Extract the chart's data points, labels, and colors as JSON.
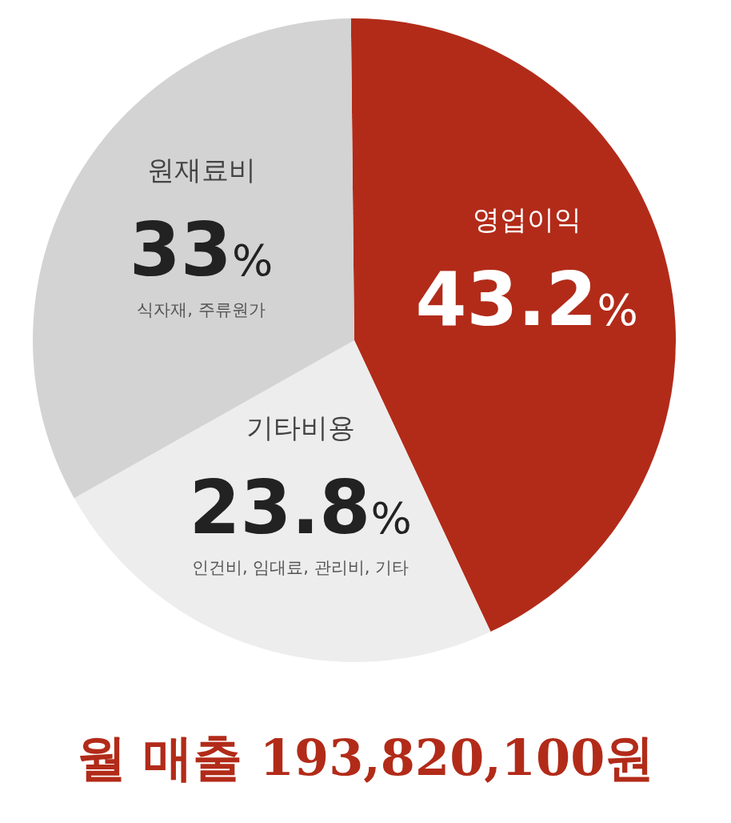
{
  "chart_data": {
    "type": "pie",
    "title": "월 매출 193,820,100원",
    "categories": [
      "영업이익",
      "기타비용",
      "원재료비"
    ],
    "values": [
      43.2,
      23.8,
      33
    ],
    "colors": [
      "#b22b19",
      "#ededed",
      "#d3d3d3"
    ],
    "value_labels": [
      "43.2%",
      "23.8%",
      "33%"
    ],
    "annotations": [
      "인건비, 임대료, 관리비, 기타",
      "식자재, 주류원가"
    ]
  }
}
